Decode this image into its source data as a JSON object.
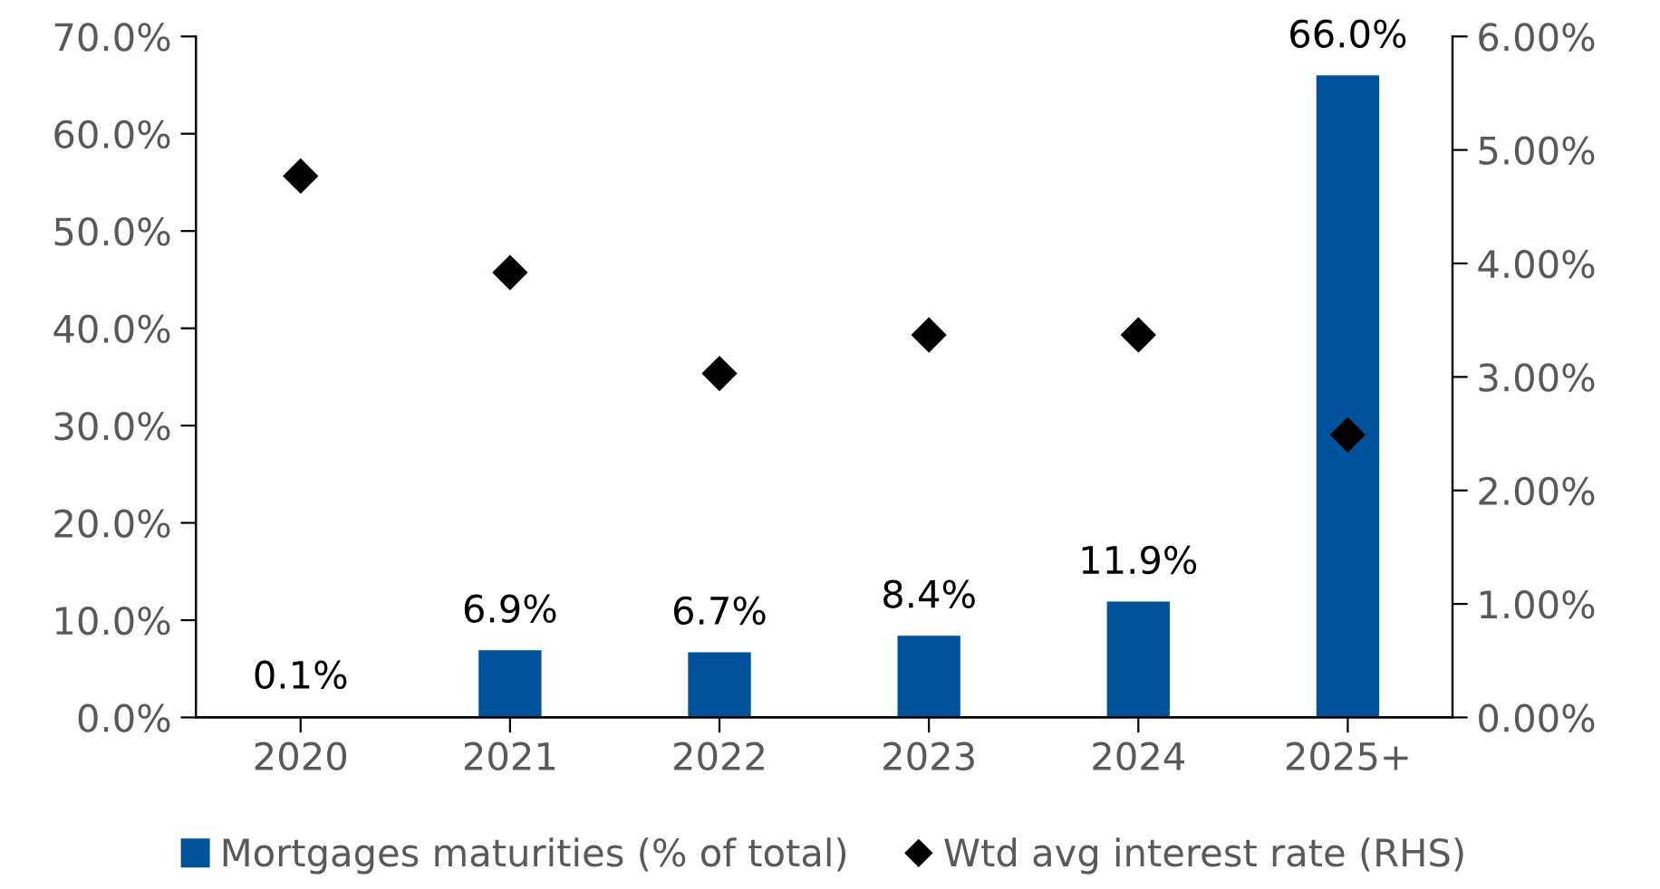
{
  "chart_data": {
    "type": "bar",
    "categories": [
      "2020",
      "2021",
      "2022",
      "2023",
      "2024",
      "2025+"
    ],
    "series": [
      {
        "name": "Mortgages maturities (% of total)",
        "color": "#00529b",
        "values": [
          0.1,
          6.9,
          6.7,
          8.4,
          11.9,
          66.0
        ],
        "value_labels": [
          "0.1%",
          "6.9%",
          "6.7%",
          "8.4%",
          "11.9%",
          "66.0%"
        ]
      },
      {
        "name": "Wtd avg interest rate (RHS)",
        "type": "scatter",
        "axis": "y2",
        "color": "#000000",
        "marker": "diamond",
        "values": [
          4.77,
          3.92,
          3.03,
          3.37,
          3.37,
          2.49
        ]
      }
    ],
    "ylim": [
      0,
      70
    ],
    "yticks": [
      {
        "value": 0,
        "label": "0.0%"
      },
      {
        "value": 10,
        "label": "10.0%"
      },
      {
        "value": 20,
        "label": "20.0%"
      },
      {
        "value": 30,
        "label": "30.0%"
      },
      {
        "value": 40,
        "label": "40.0%"
      },
      {
        "value": 50,
        "label": "50.0%"
      },
      {
        "value": 60,
        "label": "60.0%"
      },
      {
        "value": 70,
        "label": "70.0%"
      }
    ],
    "y2lim": [
      0,
      6
    ],
    "y2ticks": [
      {
        "value": 0,
        "label": "0.00%"
      },
      {
        "value": 1,
        "label": "1.00%"
      },
      {
        "value": 2,
        "label": "2.00%"
      },
      {
        "value": 3,
        "label": "3.00%"
      },
      {
        "value": 4,
        "label": "4.00%"
      },
      {
        "value": 5,
        "label": "5.00%"
      },
      {
        "value": 6,
        "label": "6.00%"
      }
    ],
    "grid": false,
    "legend": "bottom"
  }
}
